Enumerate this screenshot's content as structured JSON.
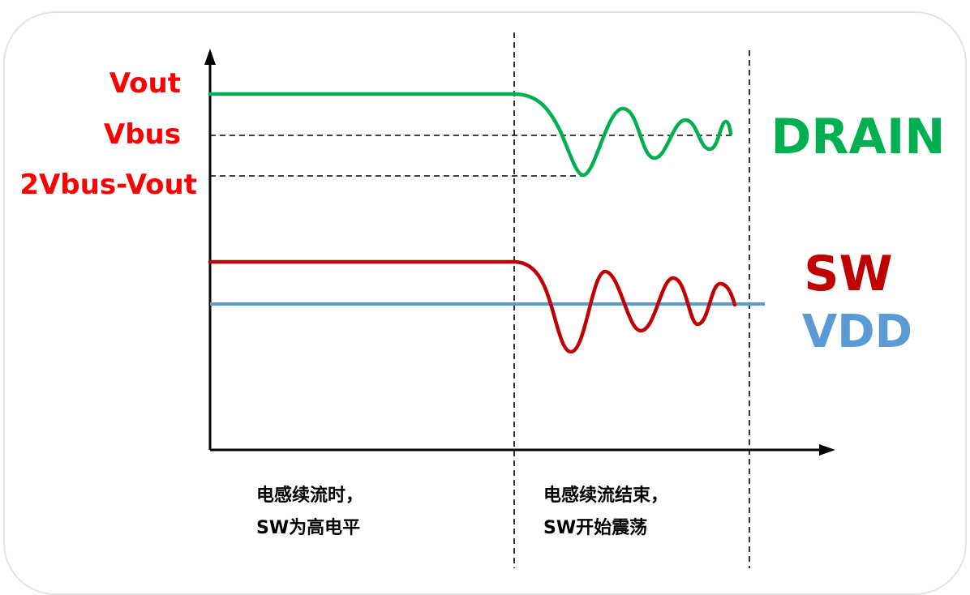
{
  "levels": {
    "vout": "Vout",
    "vbus": "Vbus",
    "two_vbus_minus_vout": "2Vbus-Vout"
  },
  "signals": {
    "drain": {
      "label": "DRAIN",
      "color": "#00b050"
    },
    "sw": {
      "label": "SW",
      "color": "#c00000"
    },
    "vdd": {
      "label": "VDD",
      "color": "#5b9bd5"
    }
  },
  "level_label_color": "#ff0000",
  "phases": [
    {
      "line1": "电感续流时，",
      "line2": "SW为高电平"
    },
    {
      "line1": "电感续流结束，",
      "line2": "SW开始震荡"
    }
  ]
}
